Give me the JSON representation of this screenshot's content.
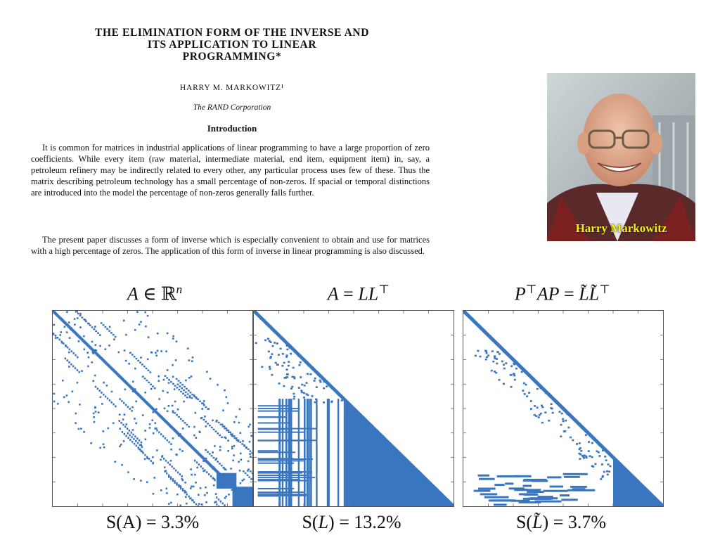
{
  "paper": {
    "title": "THE ELIMINATION FORM OF THE INVERSE AND\nITS APPLICATION TO LINEAR\nPROGRAMMING*",
    "author": "HARRY M. MARKOWITZ¹",
    "affiliation": "The RAND Corporation",
    "section": "Introduction",
    "paragraph1": "It is common for matrices in industrial applications of linear programming to have a large proportion of zero coefficients. While every item (raw material, intermediate material, end item, equipment item) in, say, a petroleum refinery may be indirectly related to every other, any particular process uses few of these. Thus the matrix describing petroleum technology has a small percentage of non-zeros. If spacial or temporal distinctions are introduced into the model the percentage of non-zeros generally falls further.",
    "paragraph2": "The present paper discusses a form of inverse which is especially convenient to obtain and use for matrices with a high percentage of zeros. The application of this form of inverse in linear programming is also discussed."
  },
  "photo": {
    "caption": "Harry Markowitz"
  },
  "plots": [
    {
      "top_label_parts": [
        "A",
        " ∈ ℝ",
        "n"
      ],
      "bottom_label": "S(A) = 3.3%",
      "kind": "original"
    },
    {
      "top_label_parts": [
        "A",
        " = ",
        "LL",
        "⊤"
      ],
      "bottom_label_parts": [
        "S(",
        "L",
        ") = 13.2%"
      ],
      "kind": "cholesky"
    },
    {
      "top_label_parts": [
        "P",
        "⊤",
        "AP",
        " = ",
        "L̃L̃",
        "⊤"
      ],
      "bottom_label_parts": [
        "S(",
        "L̃",
        ") = 3.7%"
      ],
      "kind": "permuted"
    }
  ],
  "colors": {
    "spy": "#3a76c0"
  }
}
